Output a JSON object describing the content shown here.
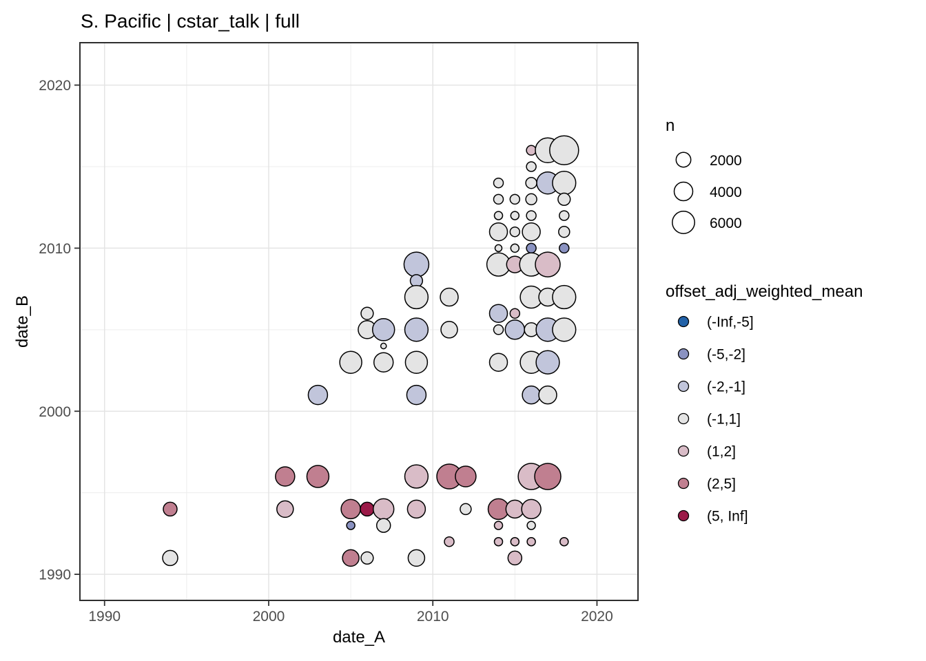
{
  "title": "S. Pacific | cstar_talk | full",
  "legend_size": {
    "title": "n",
    "entries": [
      2000,
      4000,
      6000
    ]
  },
  "legend_color": {
    "title": "offset_adj_weighted_mean",
    "entries": [
      {
        "label": "(-Inf,-5]",
        "color": "#2262a8"
      },
      {
        "label": "(-5,-2]",
        "color": "#8a92c1"
      },
      {
        "label": "(-2,-1]",
        "color": "#c1c5db"
      },
      {
        "label": "(-1,1]",
        "color": "#e4e4e4"
      },
      {
        "label": "(1,2]",
        "color": "#d9bcc7"
      },
      {
        "label": "(2,5]",
        "color": "#c07f90"
      },
      {
        "label": "(5, Inf]",
        "color": "#9b1a48"
      }
    ]
  },
  "chart_data": {
    "type": "scatter",
    "title": "S. Pacific | cstar_talk | full",
    "xlabel": "date_A",
    "ylabel": "date_B",
    "x_ticks": [
      1990,
      2000,
      2010,
      2020
    ],
    "y_ticks": [
      1990,
      2000,
      2010,
      2020
    ],
    "x_minor_ticks": [
      1995,
      2005,
      2015
    ],
    "y_minor_ticks": [
      1995,
      2005,
      2015
    ],
    "xlim": [
      1988.5,
      2022.5
    ],
    "ylim": [
      1988.4,
      2022.6
    ],
    "grid": true,
    "legend_position": "right",
    "size_field": "n",
    "color_field": "offset_adj_weighted_mean",
    "point_columns": [
      "x",
      "y",
      "n",
      "bin"
    ],
    "points": [
      [
        1994,
        1994,
        1800,
        "(2,5]"
      ],
      [
        1994,
        1991,
        2200,
        "(-1,1]"
      ],
      [
        2001,
        1996,
        3550,
        "(2,5]"
      ],
      [
        2001,
        1994,
        2600,
        "(1,2]"
      ],
      [
        2003,
        2001,
        3550,
        "(-2,-1]"
      ],
      [
        2003,
        1996,
        4650,
        "(2,5]"
      ],
      [
        2005,
        2003,
        4650,
        "(-1,1]"
      ],
      [
        2005,
        1994,
        3550,
        "(2,5]"
      ],
      [
        2005,
        1993,
        650,
        "(-5,-2]"
      ],
      [
        2005,
        1991,
        2600,
        "(2,5]"
      ],
      [
        2006,
        2006,
        1450,
        "(-1,1]"
      ],
      [
        2006,
        2005,
        3050,
        "(-1,1]"
      ],
      [
        2006,
        1994,
        1800,
        "(5, Inf]"
      ],
      [
        2006,
        1991,
        1450,
        "(-1,1]"
      ],
      [
        2007,
        2005,
        4650,
        "(-2,-1]"
      ],
      [
        2007,
        2004,
        300,
        "(-1,1]"
      ],
      [
        2007,
        2003,
        3550,
        "(-1,1]"
      ],
      [
        2007,
        1994,
        4050,
        "(1,2]"
      ],
      [
        2007,
        1993,
        1800,
        "(-1,1]"
      ],
      [
        2009,
        2009,
        5850,
        "(-2,-1]"
      ],
      [
        2009,
        2008,
        1450,
        "(-2,-1]"
      ],
      [
        2009,
        2007,
        5200,
        "(-1,1]"
      ],
      [
        2009,
        2005,
        5200,
        "(-2,-1]"
      ],
      [
        2009,
        2003,
        4650,
        "(-1,1]"
      ],
      [
        2009,
        2001,
        3550,
        "(-2,-1]"
      ],
      [
        2009,
        1996,
        5200,
        "(1,2]"
      ],
      [
        2009,
        1994,
        3050,
        "(1,2]"
      ],
      [
        2009,
        1991,
        2600,
        "(-1,1]"
      ],
      [
        2011,
        2007,
        3050,
        "(-1,1]"
      ],
      [
        2011,
        2005,
        2600,
        "(-1,1]"
      ],
      [
        2011,
        1996,
        5850,
        "(2,5]"
      ],
      [
        2011,
        1992,
        900,
        "(1,2]"
      ],
      [
        2012,
        1996,
        4050,
        "(2,5]"
      ],
      [
        2012,
        1994,
        1150,
        "(-1,1]"
      ],
      [
        2014,
        2014,
        900,
        "(-1,1]"
      ],
      [
        2014,
        2013,
        900,
        "(-1,1]"
      ],
      [
        2014,
        2012,
        650,
        "(-1,1]"
      ],
      [
        2014,
        2011,
        3050,
        "(-1,1]"
      ],
      [
        2014,
        2010,
        450,
        "(-1,1]"
      ],
      [
        2014,
        2009,
        5200,
        "(-1,1]"
      ],
      [
        2014,
        2006,
        3050,
        "(-2,-1]"
      ],
      [
        2014,
        2005,
        900,
        "(-1,1]"
      ],
      [
        2014,
        2003,
        3050,
        "(-1,1]"
      ],
      [
        2014,
        1994,
        4050,
        "(2,5]"
      ],
      [
        2014,
        1993,
        650,
        "(1,2]"
      ],
      [
        2014,
        1992,
        650,
        "(1,2]"
      ],
      [
        2015,
        2013,
        900,
        "(-1,1]"
      ],
      [
        2015,
        2012,
        650,
        "(-1,1]"
      ],
      [
        2015,
        2011,
        900,
        "(-1,1]"
      ],
      [
        2015,
        2010,
        650,
        "(-1,1]"
      ],
      [
        2015,
        2009,
        2600,
        "(1,2]"
      ],
      [
        2015,
        2006,
        900,
        "(1,2]"
      ],
      [
        2015,
        2005,
        3550,
        "(-2,-1]"
      ],
      [
        2015,
        1994,
        3050,
        "(1,2]"
      ],
      [
        2015,
        1992,
        650,
        "(1,2]"
      ],
      [
        2015,
        1991,
        1800,
        "(1,2]"
      ],
      [
        2016,
        2016,
        900,
        "(1,2]"
      ],
      [
        2016,
        2015,
        900,
        "(-1,1]"
      ],
      [
        2016,
        2014,
        1150,
        "(-1,1]"
      ],
      [
        2016,
        2013,
        1150,
        "(-1,1]"
      ],
      [
        2016,
        2012,
        900,
        "(-1,1]"
      ],
      [
        2016,
        2011,
        3050,
        "(-1,1]"
      ],
      [
        2016,
        2010,
        900,
        "(-5,-2]"
      ],
      [
        2016,
        2009,
        5200,
        "(-1,1]"
      ],
      [
        2016,
        2007,
        4650,
        "(-1,1]"
      ],
      [
        2016,
        2005,
        1800,
        "(-1,1]"
      ],
      [
        2016,
        2003,
        4650,
        "(-1,1]"
      ],
      [
        2016,
        2001,
        3050,
        "(-2,-1]"
      ],
      [
        2016,
        1996,
        6550,
        "(1,2]"
      ],
      [
        2016,
        1994,
        3550,
        "(1,2]"
      ],
      [
        2016,
        1993,
        650,
        "(-1,1]"
      ],
      [
        2016,
        1992,
        650,
        "(1,2]"
      ],
      [
        2017,
        2016,
        5850,
        "(-1,1]"
      ],
      [
        2017,
        2014,
        4650,
        "(-2,-1]"
      ],
      [
        2017,
        2009,
        5850,
        "(1,2]"
      ],
      [
        2017,
        2007,
        3050,
        "(-1,1]"
      ],
      [
        2017,
        2005,
        5200,
        "(-2,-1]"
      ],
      [
        2017,
        2003,
        5200,
        "(-2,-1]"
      ],
      [
        2017,
        2001,
        3050,
        "(-1,1]"
      ],
      [
        2017,
        1996,
        6550,
        "(2,5]"
      ],
      [
        2018,
        2016,
        8000,
        "(-1,1]"
      ],
      [
        2018,
        2014,
        5200,
        "(-1,1]"
      ],
      [
        2018,
        2013,
        1450,
        "(-1,1]"
      ],
      [
        2018,
        2012,
        900,
        "(-1,1]"
      ],
      [
        2018,
        2011,
        1150,
        "(-1,1]"
      ],
      [
        2018,
        2010,
        900,
        "(-5,-2]"
      ],
      [
        2018,
        2007,
        5200,
        "(-1,1]"
      ],
      [
        2018,
        2005,
        5200,
        "(-1,1]"
      ],
      [
        2018,
        1992,
        650,
        "(1,2]"
      ]
    ]
  }
}
